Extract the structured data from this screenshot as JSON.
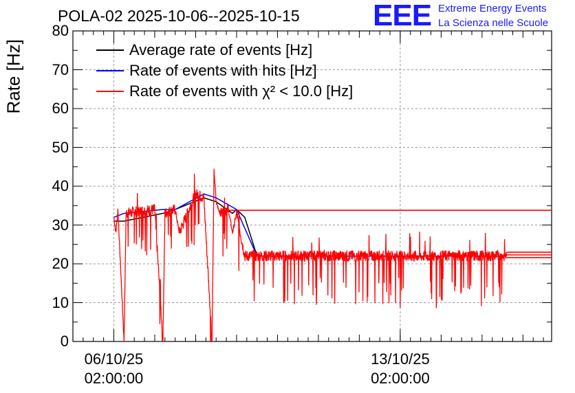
{
  "title": "POLA-02 2025-10-06--2025-10-15",
  "logo": {
    "text": "EEE",
    "line1": "Extreme Energy Events",
    "line2": "La Scienza nelle Scuole"
  },
  "chart_data": {
    "type": "line",
    "ylabel": "Rate [Hz]",
    "ylim": [
      0,
      80
    ],
    "yticks": [
      "0",
      "10",
      "20",
      "30",
      "40",
      "50",
      "60",
      "70",
      "80"
    ],
    "xticks": [
      {
        "label1": "06/10/25",
        "label2": "02:00:00",
        "day": 0
      },
      {
        "label1": "13/10/25",
        "label2": "02:00:00",
        "day": 7
      }
    ],
    "xlim_days": [
      -1.0,
      10.7
    ],
    "grid": true,
    "legend_position": "top-left",
    "series": [
      {
        "name": "Average rate of events [Hz]",
        "color": "#000000",
        "points": [
          [
            0.0,
            31
          ],
          [
            0.25,
            31
          ],
          [
            1.2,
            33
          ],
          [
            1.5,
            34
          ],
          [
            2.2,
            37
          ],
          [
            2.5,
            36
          ],
          [
            2.9,
            33
          ],
          [
            3.0,
            34
          ],
          [
            3.2,
            32
          ],
          [
            3.5,
            22
          ],
          [
            9.6,
            22
          ]
        ]
      },
      {
        "name": "Rate of events with hits [Hz]",
        "color": "#0000ff",
        "points": [
          [
            0.0,
            32
          ],
          [
            0.25,
            33
          ],
          [
            1.2,
            34
          ],
          [
            1.5,
            34
          ],
          [
            2.2,
            38
          ],
          [
            2.5,
            37
          ],
          [
            3.0,
            34
          ],
          [
            3.5,
            22
          ],
          [
            9.6,
            22
          ]
        ]
      },
      {
        "name": "Rate of events with χ² < 10.0 [Hz]",
        "color": "#ff0000",
        "points": [
          [
            0.0,
            32
          ],
          [
            0.05,
            28
          ],
          [
            0.1,
            34
          ],
          [
            0.25,
            0
          ],
          [
            0.3,
            33
          ],
          [
            1.0,
            34
          ],
          [
            1.2,
            0
          ],
          [
            1.25,
            33
          ],
          [
            1.5,
            34
          ],
          [
            1.6,
            28
          ],
          [
            2.0,
            38
          ],
          [
            2.2,
            37
          ],
          [
            2.4,
            0
          ],
          [
            2.45,
            44
          ],
          [
            2.5,
            36
          ],
          [
            2.6,
            33
          ],
          [
            2.8,
            34
          ],
          [
            2.9,
            28
          ],
          [
            3.0,
            33
          ],
          [
            3.2,
            22
          ],
          [
            9.6,
            22
          ]
        ],
        "flat_lines": [
          33.8,
          23.0,
          22.3,
          21.6
        ]
      }
    ]
  }
}
